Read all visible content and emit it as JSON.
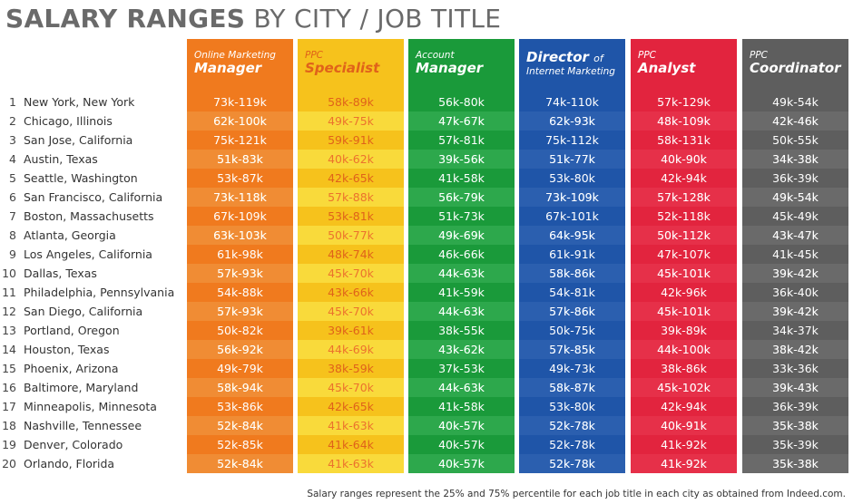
{
  "title": {
    "bold": "SALARY RANGES",
    "light": "BY CITY / JOB TITLE"
  },
  "footnote": "Salary ranges represent the 25% and 75% percentile for each job title in each city as obtained from Indeed.com.",
  "colors": {
    "title": "#6a6a6a",
    "online_marketing_manager": "#f07a1e",
    "ppc_specialist": "#f6c21c",
    "account_manager": "#1a9a3a",
    "director_internet_marketing": "#1f55a8",
    "ppc_analyst": "#e2243e",
    "ppc_coordinator": "#5e5e5e"
  },
  "columns": [
    {
      "small": "Online Marketing",
      "big": "Manager",
      "color": "#f07a1e",
      "text": "#ffffff"
    },
    {
      "small": "PPC",
      "big": "Specialist",
      "color": "#f6c21c",
      "text": "#e0621a"
    },
    {
      "small": "Account",
      "big": "Manager",
      "color": "#1a9a3a",
      "text": "#ffffff"
    },
    {
      "small": "",
      "big": "Director",
      "big_of": "of",
      "small2": "Internet Marketing",
      "color": "#1f55a8",
      "text": "#ffffff"
    },
    {
      "small": "PPC",
      "big": "Analyst",
      "color": "#e2243e",
      "text": "#ffffff"
    },
    {
      "small": "PPC",
      "big": "Coordinator",
      "color": "#5e5e5e",
      "text": "#ffffff"
    }
  ],
  "rows": [
    {
      "rank": "1",
      "city": "New York, New York"
    },
    {
      "rank": "2",
      "city": "Chicago, Illinois"
    },
    {
      "rank": "3",
      "city": "San Jose, California"
    },
    {
      "rank": "4",
      "city": "Austin, Texas"
    },
    {
      "rank": "5",
      "city": "Seattle, Washington"
    },
    {
      "rank": "6",
      "city": "San Francisco, California"
    },
    {
      "rank": "7",
      "city": "Boston, Massachusetts"
    },
    {
      "rank": "8",
      "city": "Atlanta, Georgia"
    },
    {
      "rank": "9",
      "city": "Los Angeles, California"
    },
    {
      "rank": "10",
      "city": "Dallas, Texas"
    },
    {
      "rank": "11",
      "city": "Philadelphia, Pennsylvania"
    },
    {
      "rank": "12",
      "city": "San Diego, California"
    },
    {
      "rank": "13",
      "city": "Portland, Oregon"
    },
    {
      "rank": "14",
      "city": "Houston, Texas"
    },
    {
      "rank": "15",
      "city": "Phoenix, Arizona"
    },
    {
      "rank": "16",
      "city": "Baltimore, Maryland"
    },
    {
      "rank": "17",
      "city": "Minneapolis, Minnesota"
    },
    {
      "rank": "18",
      "city": "Nashville, Tennessee"
    },
    {
      "rank": "19",
      "city": "Denver, Colorado"
    },
    {
      "rank": "20",
      "city": "Orlando, Florida"
    }
  ],
  "chart_data": {
    "type": "table",
    "title": "SALARY RANGES BY CITY / JOB TITLE",
    "columns": [
      "Online Marketing Manager",
      "PPC Specialist",
      "Account Manager",
      "Director of Internet Marketing",
      "PPC Analyst",
      "PPC Coordinator"
    ],
    "rows": [
      "New York, New York",
      "Chicago, Illinois",
      "San Jose, California",
      "Austin, Texas",
      "Seattle, Washington",
      "San Francisco, California",
      "Boston, Massachusetts",
      "Atlanta, Georgia",
      "Los Angeles, California",
      "Dallas, Texas",
      "Philadelphia, Pennsylvania",
      "San Diego, California",
      "Portland, Oregon",
      "Houston, Texas",
      "Phoenix, Arizona",
      "Baltimore, Maryland",
      "Minneapolis, Minnesota",
      "Nashville, Tennessee",
      "Denver, Colorado",
      "Orlando, Florida"
    ],
    "values": [
      [
        "73k-119k",
        "58k-89k",
        "56k-80k",
        "74k-110k",
        "57k-129k",
        "49k-54k"
      ],
      [
        "62k-100k",
        "49k-75k",
        "47k-67k",
        "62k-93k",
        "48k-109k",
        "42k-46k"
      ],
      [
        "75k-121k",
        "59k-91k",
        "57k-81k",
        "75k-112k",
        "58k-131k",
        "50k-55k"
      ],
      [
        "51k-83k",
        "40k-62k",
        "39k-56k",
        "51k-77k",
        "40k-90k",
        "34k-38k"
      ],
      [
        "53k-87k",
        "42k-65k",
        "41k-58k",
        "53k-80k",
        "42k-94k",
        "36k-39k"
      ],
      [
        "73k-118k",
        "57k-88k",
        "56k-79k",
        "73k-109k",
        "57k-128k",
        "49k-54k"
      ],
      [
        "67k-109k",
        "53k-81k",
        "51k-73k",
        "67k-101k",
        "52k-118k",
        "45k-49k"
      ],
      [
        "63k-103k",
        "50k-77k",
        "49k-69k",
        "64k-95k",
        "50k-112k",
        "43k-47k"
      ],
      [
        "61k-98k",
        "48k-74k",
        "46k-66k",
        "61k-91k",
        "47k-107k",
        "41k-45k"
      ],
      [
        "57k-93k",
        "45k-70k",
        "44k-63k",
        "58k-86k",
        "45k-101k",
        "39k-42k"
      ],
      [
        "54k-88k",
        "43k-66k",
        "41k-59k",
        "54k-81k",
        "42k-96k",
        "36k-40k"
      ],
      [
        "57k-93k",
        "45k-70k",
        "44k-63k",
        "57k-86k",
        "45k-101k",
        "39k-42k"
      ],
      [
        "50k-82k",
        "39k-61k",
        "38k-55k",
        "50k-75k",
        "39k-89k",
        "34k-37k"
      ],
      [
        "56k-92k",
        "44k-69k",
        "43k-62k",
        "57k-85k",
        "44k-100k",
        "38k-42k"
      ],
      [
        "49k-79k",
        "38k-59k",
        "37k-53k",
        "49k-73k",
        "38k-86k",
        "33k-36k"
      ],
      [
        "58k-94k",
        "45k-70k",
        "44k-63k",
        "58k-87k",
        "45k-102k",
        "39k-43k"
      ],
      [
        "53k-86k",
        "42k-65k",
        "41k-58k",
        "53k-80k",
        "42k-94k",
        "36k-39k"
      ],
      [
        "52k-84k",
        "41k-63k",
        "40k-57k",
        "52k-78k",
        "40k-91k",
        "35k-38k"
      ],
      [
        "52k-85k",
        "41k-64k",
        "40k-57k",
        "52k-78k",
        "41k-92k",
        "35k-39k"
      ],
      [
        "52k-84k",
        "41k-63k",
        "40k-57k",
        "52k-78k",
        "41k-92k",
        "35k-38k"
      ]
    ]
  }
}
